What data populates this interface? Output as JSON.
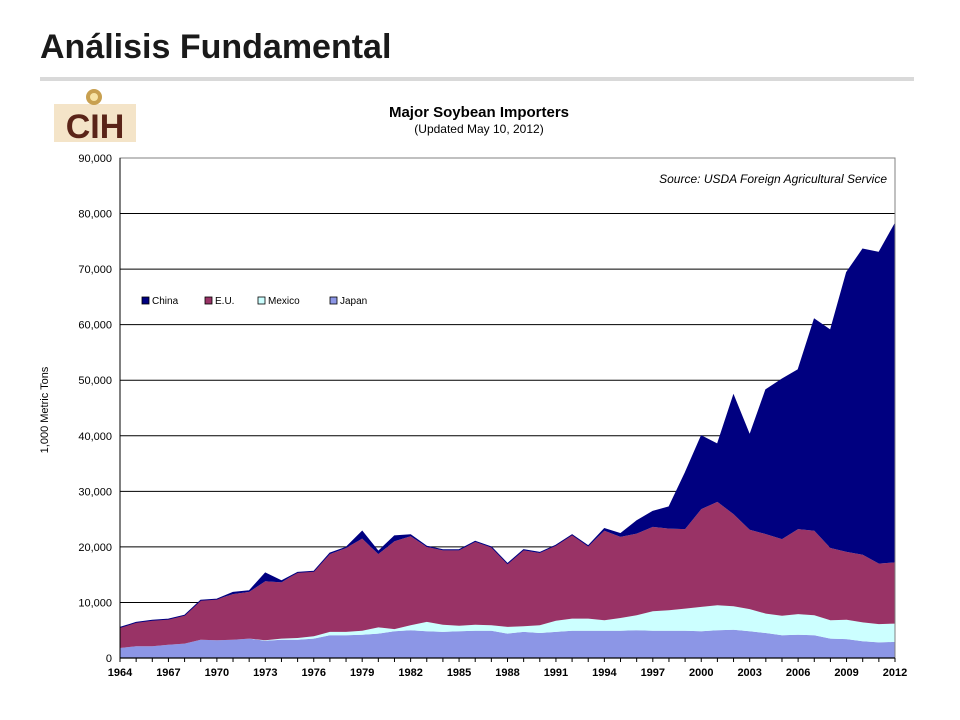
{
  "slide": {
    "title": "Análisis Fundamental",
    "logo_text": "CIH"
  },
  "chart_data": {
    "type": "area",
    "stacked": true,
    "title": "Major Soybean Importers",
    "subtitle": "(Updated May 10, 2012)",
    "source": "Source: USDA Foreign Agricultural Service",
    "xlabel": "",
    "ylabel": "1,000 Metric Tons",
    "xlim": [
      1964,
      2012
    ],
    "ylim": [
      0,
      90000
    ],
    "y_ticks": [
      "0",
      "10,000",
      "20,000",
      "30,000",
      "40,000",
      "50,000",
      "60,000",
      "70,000",
      "80,000",
      "90,000"
    ],
    "x_ticks": [
      "1964",
      "1967",
      "1970",
      "1973",
      "1976",
      "1979",
      "1982",
      "1985",
      "1988",
      "1991",
      "1994",
      "1997",
      "2000",
      "2003",
      "2006",
      "2009",
      "2012"
    ],
    "grid": "horizontal",
    "legend_position": "upper-left",
    "x": [
      1964,
      1965,
      1966,
      1967,
      1968,
      1969,
      1970,
      1971,
      1972,
      1973,
      1974,
      1975,
      1976,
      1977,
      1978,
      1979,
      1980,
      1981,
      1982,
      1983,
      1984,
      1985,
      1986,
      1987,
      1988,
      1989,
      1990,
      1991,
      1992,
      1993,
      1994,
      1995,
      1996,
      1997,
      1998,
      1999,
      2000,
      2001,
      2002,
      2003,
      2004,
      2005,
      2006,
      2007,
      2008,
      2009,
      2010,
      2011,
      2012
    ],
    "series": [
      {
        "name": "Japan",
        "color": "#8c96e6",
        "values": [
          1800,
          2100,
          2100,
          2400,
          2600,
          3300,
          3200,
          3300,
          3500,
          3100,
          3300,
          3300,
          3500,
          4100,
          4100,
          4200,
          4400,
          4800,
          5000,
          4800,
          4700,
          4800,
          4900,
          4900,
          4400,
          4700,
          4500,
          4700,
          4900,
          4900,
          4900,
          4900,
          5000,
          4900,
          4900,
          4900,
          4800,
          5000,
          5100,
          4800,
          4500,
          4100,
          4200,
          4100,
          3500,
          3400,
          3000,
          2800,
          2900
        ]
      },
      {
        "name": "Mexico",
        "color": "#ccffff",
        "values": [
          0,
          0,
          0,
          0,
          0,
          0,
          0,
          0,
          0,
          100,
          200,
          300,
          400,
          600,
          600,
          700,
          1100,
          400,
          900,
          1700,
          1300,
          1000,
          1100,
          1000,
          1200,
          1000,
          1400,
          2000,
          2200,
          2200,
          1900,
          2300,
          2700,
          3500,
          3700,
          4000,
          4400,
          4500,
          4200,
          4000,
          3500,
          3500,
          3700,
          3600,
          3300,
          3500,
          3400,
          3300,
          3300
        ]
      },
      {
        "name": "E.U.",
        "color": "#993366",
        "values": [
          3700,
          4300,
          4700,
          4600,
          5100,
          7100,
          7400,
          8200,
          8400,
          10600,
          10100,
          11800,
          11700,
          14000,
          15100,
          16600,
          13200,
          15800,
          16000,
          13500,
          13400,
          13600,
          14900,
          14000,
          11300,
          13700,
          13000,
          13600,
          15100,
          13000,
          16100,
          14600,
          14700,
          15200,
          14700,
          14300,
          17600,
          18600,
          16600,
          14300,
          14300,
          13800,
          15300,
          15200,
          13000,
          12200,
          12200,
          10900,
          11000
        ]
      },
      {
        "name": "China",
        "color": "#000080",
        "values": [
          0,
          0,
          0,
          0,
          0,
          0,
          0,
          300,
          200,
          1500,
          300,
          0,
          0,
          200,
          100,
          1300,
          500,
          1000,
          300,
          100,
          100,
          100,
          100,
          100,
          100,
          100,
          100,
          0,
          0,
          100,
          400,
          600,
          2300,
          2800,
          3900,
          10100,
          13200,
          10400,
          21400,
          17000,
          26000,
          28800,
          28700,
          38100,
          39200,
          50300,
          55000,
          56000,
          61000
        ]
      }
    ],
    "legend_order": [
      "China",
      "E.U.",
      "Mexico",
      "Japan"
    ]
  }
}
